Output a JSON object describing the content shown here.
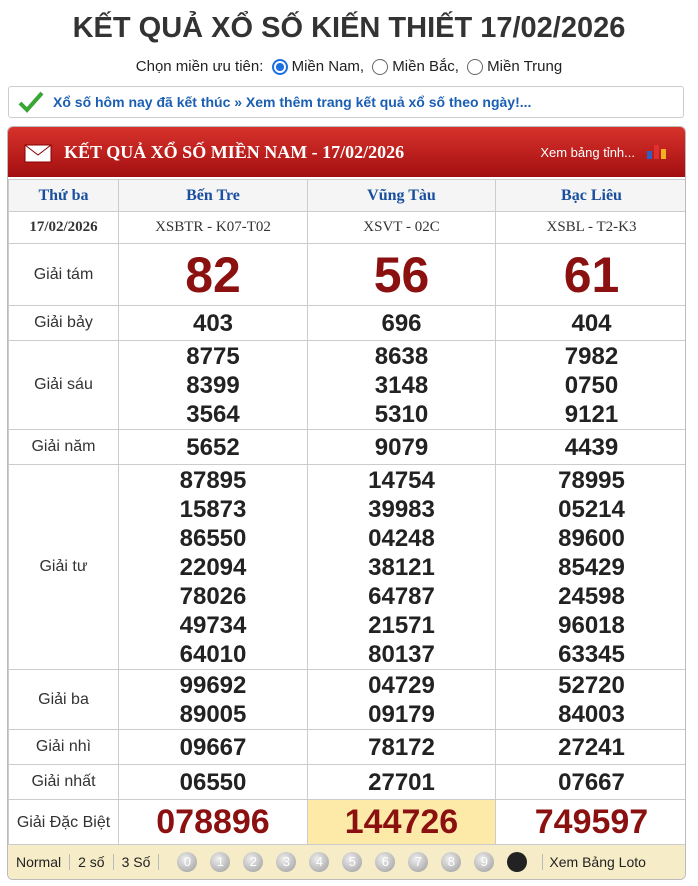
{
  "header": {
    "title": "KẾT QUẢ XỔ SỐ KIẾN THIẾT 17/02/2026",
    "region_label": "Chọn miền ưu tiên:",
    "regions": [
      "Miền Nam,",
      "Miền Bắc,",
      "Miền Trung"
    ]
  },
  "notice": "Xổ số hôm nay đã kết thúc » Xem thêm trang kết quả xổ số theo ngày!...",
  "table": {
    "title": "KẾT QUẢ XỔ SỐ MIỀN NAM - 17/02/2026",
    "link": "Xem bảng tỉnh...",
    "weekday": "Thứ ba",
    "date": "17/02/2026",
    "provinces": [
      {
        "name": "Bến Tre",
        "code": "XSBTR - K07-T02"
      },
      {
        "name": "Vũng Tàu",
        "code": "XSVT - 02C"
      },
      {
        "name": "Bạc Liêu",
        "code": "XSBL - T2-K3"
      }
    ],
    "prizes": [
      {
        "label": "Giải tám",
        "results": [
          [
            "82"
          ],
          [
            "56"
          ],
          [
            "61"
          ]
        ]
      },
      {
        "label": "Giải bảy",
        "results": [
          [
            "403"
          ],
          [
            "696"
          ],
          [
            "404"
          ]
        ]
      },
      {
        "label": "Giải sáu",
        "results": [
          [
            "8775",
            "8399",
            "3564"
          ],
          [
            "8638",
            "3148",
            "5310"
          ],
          [
            "7982",
            "0750",
            "9121"
          ]
        ]
      },
      {
        "label": "Giải năm",
        "results": [
          [
            "5652"
          ],
          [
            "9079"
          ],
          [
            "4439"
          ]
        ]
      },
      {
        "label": "Giải tư",
        "results": [
          [
            "87895",
            "15873",
            "86550",
            "22094",
            "78026",
            "49734",
            "64010"
          ],
          [
            "14754",
            "39983",
            "04248",
            "38121",
            "64787",
            "21571",
            "80137"
          ],
          [
            "78995",
            "05214",
            "89600",
            "85429",
            "24598",
            "96018",
            "63345"
          ]
        ]
      },
      {
        "label": "Giải ba",
        "results": [
          [
            "99692",
            "89005"
          ],
          [
            "04729",
            "09179"
          ],
          [
            "52720",
            "84003"
          ]
        ]
      },
      {
        "label": "Giải nhì",
        "results": [
          [
            "09667"
          ],
          [
            "78172"
          ],
          [
            "27241"
          ]
        ]
      },
      {
        "label": "Giải nhất",
        "results": [
          [
            "06550"
          ],
          [
            "27701"
          ],
          [
            "07667"
          ]
        ]
      },
      {
        "label": "Giải Đặc Biệt",
        "results": [
          [
            "078896"
          ],
          [
            "144726"
          ],
          [
            "749597"
          ]
        ]
      }
    ]
  },
  "footer": {
    "modes": [
      "Normal",
      "2 số",
      "3 Số"
    ],
    "digits": [
      "0",
      "1",
      "2",
      "3",
      "4",
      "5",
      "6",
      "7",
      "8",
      "9"
    ],
    "link": "Xem Bảng Loto"
  }
}
